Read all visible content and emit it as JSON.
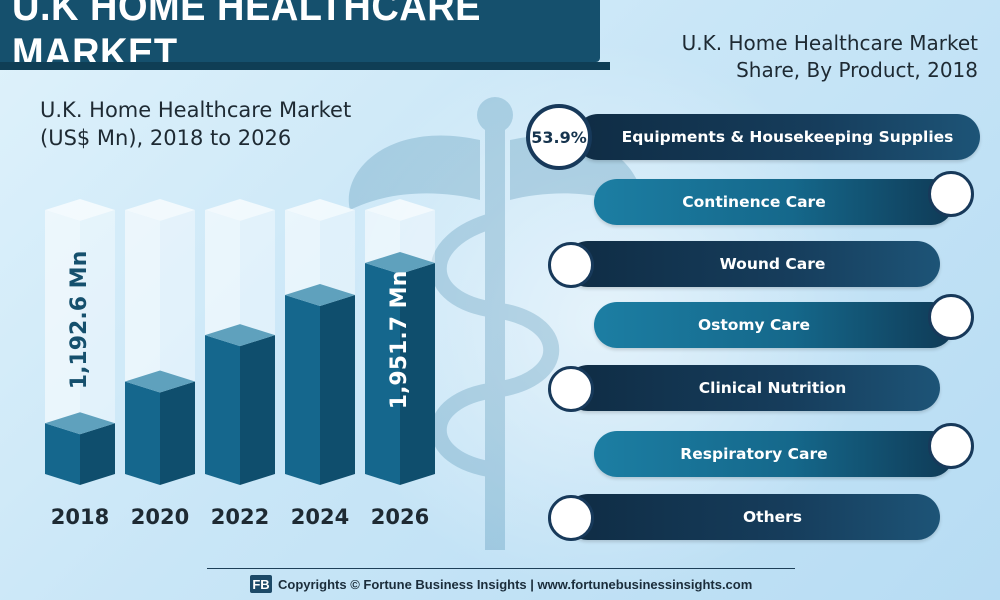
{
  "title": "U.K HOME HEALTHCARE MARKET",
  "left_chart": {
    "title_line1": "U.K. Home Healthcare Market",
    "title_line2": "(US$ Mn), 2018 to 2026"
  },
  "right_panel": {
    "title_line1": "U.K. Home Healthcare Market",
    "title_line2": "Share, By Product, 2018",
    "items": [
      {
        "label": "Equipments & Housekeeping Supplies",
        "share": "53.9%"
      },
      {
        "label": "Continence Care",
        "share": ""
      },
      {
        "label": "Wound Care",
        "share": ""
      },
      {
        "label": "Ostomy Care",
        "share": ""
      },
      {
        "label": "Clinical Nutrition",
        "share": ""
      },
      {
        "label": "Respiratory Care",
        "share": ""
      },
      {
        "label": "Others",
        "share": ""
      }
    ]
  },
  "footer": {
    "logo": "FB",
    "text": "Copyrights © Fortune Business Insights | www.fortunebusinessinsights.com"
  },
  "chart_data": {
    "type": "bar",
    "title": "U.K. Home Healthcare Market (US$ Mn), 2018 to 2026",
    "categories": [
      "2018",
      "2020",
      "2022",
      "2024",
      "2026"
    ],
    "values": [
      1192.6,
      1390,
      1610,
      1800,
      1951.7
    ],
    "value_labels": [
      "1,192.6 Mn",
      "",
      "",
      "",
      "1,951.7 Mn"
    ],
    "ylim": [
      900,
      2250
    ],
    "colors": {
      "bar_front": "#15678d",
      "bar_side": "#0f4e6d",
      "bar_top": "#5fa1bd",
      "ghost": "rgba(255,255,255,0.55)"
    }
  }
}
